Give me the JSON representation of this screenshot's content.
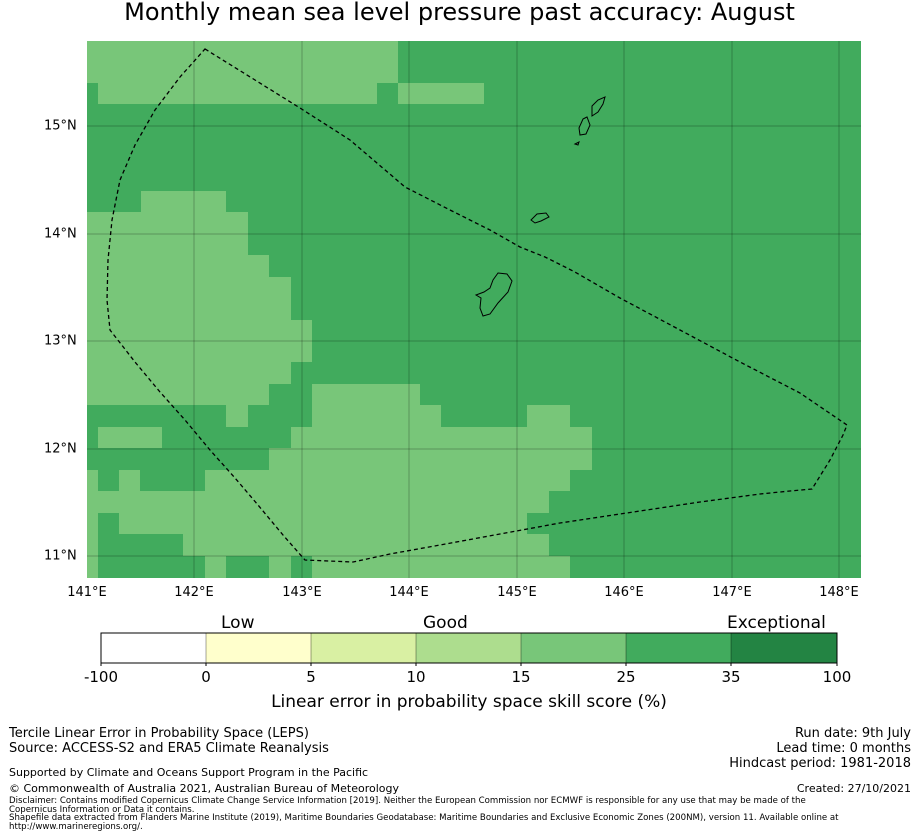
{
  "title": "Monthly mean sea level pressure past accuracy: August",
  "map": {
    "x_ticks": [
      "141°E",
      "142°E",
      "143°E",
      "144°E",
      "145°E",
      "146°E",
      "147°E",
      "148°E"
    ],
    "y_ticks": [
      "15°N",
      "14°N",
      "13°N",
      "12°N",
      "11°N"
    ],
    "lon_range": [
      141,
      148.2
    ],
    "lat_range": [
      10.8,
      15.8
    ],
    "gridlines": true,
    "cell_classes": {
      "light": "15-25",
      "medium": "25-35"
    },
    "colors": {
      "light": "#78c679",
      "medium": "#41ab5d",
      "gridline": "#000000",
      "boundary": "#000000"
    }
  },
  "colorbar": {
    "categories": [
      "Low",
      "Good",
      "Exceptional"
    ],
    "boundaries": [
      "-100",
      "0",
      "5",
      "10",
      "15",
      "25",
      "35",
      "100"
    ],
    "colors": [
      "#ffffff",
      "#ffffcc",
      "#d9f0a3",
      "#addd8e",
      "#78c679",
      "#41ab5d",
      "#238443"
    ],
    "label": "Linear error in probability space skill score (%)"
  },
  "info_left": {
    "line1": "Tercile Linear Error in Probability Space (LEPS)",
    "line2": "Source: ACCESS-S2 and ERA5 Climate Reanalysis",
    "supported": "Supported by Climate and Oceans Support Program in the Pacific",
    "copyright": "© Commonwealth of Australia 2021, Australian Bureau of Meteorology",
    "disclaimer1": "Disclaimer: Contains modified Copernicus Climate Change Service Information [2019]. Neither the European Commission nor ECMWF is responsible for any use that may be made of the",
    "disclaimer2": "Copernicus Information or Data it contains.",
    "shapefile1": "Shapefile data extracted from Flanders Marine Institute (2019), Maritime Boundaries Geodatabase: Maritime Boundaries and Exclusive Economic Zones (200NM), version 11. Available online at",
    "shapefile2": "http://www.marineregions.org/."
  },
  "info_right": {
    "run_date": "Run date: 9th July",
    "lead_time": "Lead time: 0 months",
    "hindcast": "Hindcast period: 1981-2018",
    "created": "Created: 27/10/2021"
  }
}
